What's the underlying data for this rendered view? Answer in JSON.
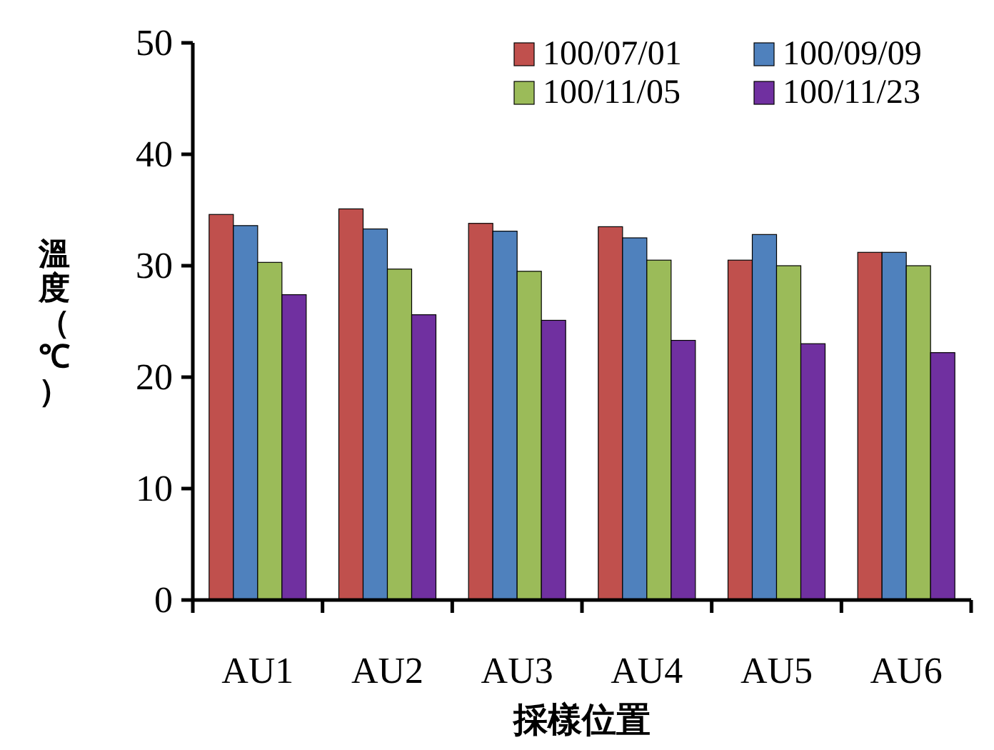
{
  "chart_data": {
    "type": "bar",
    "xlabel": "採樣位置",
    "ylabel": "溫度（℃）",
    "categories": [
      "AU1",
      "AU2",
      "AU3",
      "AU4",
      "AU5",
      "AU6"
    ],
    "series": [
      {
        "name": "100/07/01",
        "color": "#c0504d",
        "values": [
          34.6,
          35.1,
          33.8,
          33.5,
          30.5,
          31.2
        ]
      },
      {
        "name": "100/09/09",
        "color": "#4f81bd",
        "values": [
          33.6,
          33.3,
          33.1,
          32.5,
          32.8,
          31.2
        ]
      },
      {
        "name": "100/11/05",
        "color": "#9bbb59",
        "values": [
          30.3,
          29.7,
          29.5,
          30.5,
          30.0,
          30.0
        ]
      },
      {
        "name": "100/11/23",
        "color": "#7030a0",
        "values": [
          27.4,
          25.6,
          25.1,
          23.3,
          23.0,
          22.2
        ]
      }
    ],
    "ylim": [
      0,
      50
    ],
    "yticks": [
      0,
      10,
      20,
      30,
      40,
      50
    ],
    "legend": "top right"
  }
}
